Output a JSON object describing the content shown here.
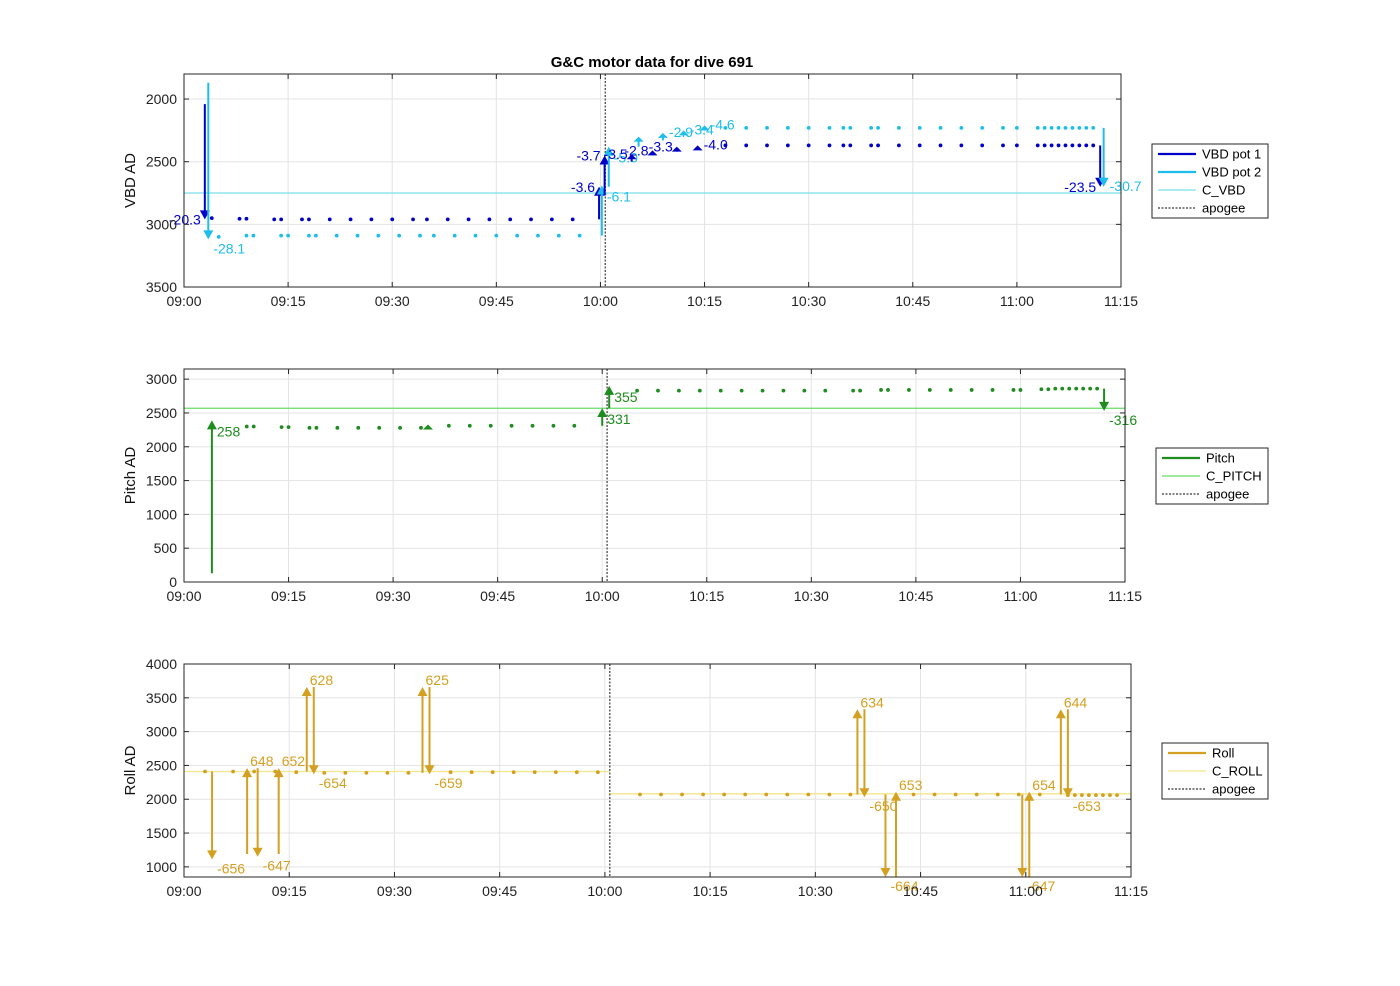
{
  "figure_title": "G&C motor data for dive 691",
  "colors": {
    "vbd1": "#0000c8",
    "vbd2": "#1ebeeb",
    "c_vbd": "#7adfea",
    "pitch": "#1e8c1e",
    "c_pitch": "#66dd66",
    "roll": "#d4a021",
    "c_roll": "#f5e68a",
    "apogee": "#555555",
    "grid": "#e3e3e3"
  },
  "chart_data": [
    {
      "type": "line",
      "name": "vbd",
      "ylabel": "VBD AD",
      "ylim": [
        3500,
        1800
      ],
      "yreversed": true,
      "yticks": [
        2000,
        2500,
        3000,
        3500
      ],
      "xlim": [
        "09:00",
        "11:15"
      ],
      "xticks": [
        "09:00",
        "09:15",
        "09:30",
        "09:45",
        "10:00",
        "10:15",
        "10:30",
        "10:45",
        "11:00",
        "11:15"
      ],
      "grid": true,
      "apogee": "10:00.7",
      "legend": [
        "VBD pot 1",
        "VBD pot 2",
        "C_VBD",
        "apogee"
      ],
      "reference_line": {
        "name": "C_VBD",
        "value": 2750
      },
      "series": [
        {
          "name": "VBD pot 1",
          "color_key": "vbd1",
          "x": [
            "09:04",
            "09:08",
            "09:09",
            "09:13",
            "09:14",
            "09:17",
            "09:18",
            "09:21",
            "09:24",
            "09:27",
            "09:30",
            "09:33",
            "09:35",
            "09:38",
            "09:41",
            "09:44",
            "09:47",
            "09:50",
            "09:53",
            "09:56",
            "10:18",
            "10:21",
            "10:24",
            "10:27",
            "10:30",
            "10:33",
            "10:35",
            "10:36",
            "10:39",
            "10:40",
            "10:43",
            "10:46",
            "10:49",
            "10:52",
            "10:55",
            "10:58",
            "11:00",
            "11:03",
            "11:04",
            "11:05",
            "11:06",
            "11:07",
            "11:08",
            "11:09",
            "11:10",
            "11:11"
          ],
          "y": [
            2950,
            2955,
            2955,
            2960,
            2960,
            2960,
            2960,
            2960,
            2960,
            2960,
            2960,
            2960,
            2960,
            2960,
            2960,
            2960,
            2960,
            2960,
            2960,
            2960,
            2370,
            2370,
            2370,
            2370,
            2370,
            2370,
            2370,
            2370,
            2370,
            2370,
            2370,
            2370,
            2370,
            2370,
            2370,
            2370,
            2370,
            2370,
            2370,
            2370,
            2370,
            2370,
            2370,
            2370,
            2370,
            2370
          ]
        },
        {
          "name": "VBD pot 2",
          "color_key": "vbd2",
          "x": [
            "09:05",
            "09:09",
            "09:10",
            "09:14",
            "09:15",
            "09:18",
            "09:19",
            "09:22",
            "09:25",
            "09:28",
            "09:31",
            "09:34",
            "09:36",
            "09:39",
            "09:42",
            "09:45",
            "09:48",
            "09:51",
            "09:54",
            "09:57",
            "10:18",
            "10:21",
            "10:24",
            "10:27",
            "10:30",
            "10:33",
            "10:35",
            "10:36",
            "10:39",
            "10:40",
            "10:43",
            "10:46",
            "10:49",
            "10:52",
            "10:55",
            "10:58",
            "11:00",
            "11:03",
            "11:04",
            "11:05",
            "11:06",
            "11:07",
            "11:08",
            "11:09",
            "11:10",
            "11:11"
          ],
          "y": [
            3100,
            3090,
            3090,
            3090,
            3090,
            3090,
            3090,
            3090,
            3090,
            3090,
            3090,
            3090,
            3090,
            3090,
            3090,
            3090,
            3090,
            3090,
            3090,
            3090,
            2230,
            2230,
            2230,
            2230,
            2230,
            2230,
            2230,
            2230,
            2230,
            2230,
            2230,
            2230,
            2230,
            2230,
            2230,
            2230,
            2230,
            2230,
            2230,
            2230,
            2230,
            2230,
            2230,
            2230,
            2230,
            2230
          ]
        }
      ],
      "moves": [
        {
          "series": "VBD pot 1",
          "x": "09:03",
          "y0": 2040,
          "y1": 2960,
          "label": "-20.3",
          "label_side": "left"
        },
        {
          "series": "VBD pot 2",
          "x": "09:03.5",
          "y0": 1870,
          "y1": 3120,
          "label": "-28.1",
          "label_side": "right-below"
        },
        {
          "series": "VBD pot 1",
          "x": "09:59.8",
          "y0": 2960,
          "y1": 2700,
          "label": "-3.6",
          "label_side": "left"
        },
        {
          "series": "VBD pot 2",
          "x": "10:00.2",
          "y0": 3090,
          "y1": 2690,
          "label": "-6.1",
          "label_side": "right-below"
        },
        {
          "series": "VBD pot 1",
          "x": "10:00.6",
          "y0": 2770,
          "y1": 2450,
          "label": "-3.7",
          "label_side": "left"
        },
        {
          "series": "VBD pot 2",
          "x": "10:01.2",
          "y0": 2700,
          "y1": 2380,
          "label": "-5.0",
          "label_side": "right-below"
        },
        {
          "series": "VBD pot 1",
          "x": "10:04.5",
          "y0": 2500,
          "y1": 2440,
          "label": "-3.5",
          "label_side": "left"
        },
        {
          "series": "VBD pot 2",
          "x": "10:05.5",
          "y0": 2380,
          "y1": 2300,
          "label": "",
          "label_side": "right"
        },
        {
          "series": "VBD pot 1",
          "x": "10:07.5",
          "y0": 2450,
          "y1": 2410,
          "label": "-2.8",
          "label_side": "left"
        },
        {
          "series": "VBD pot 2",
          "x": "10:09",
          "y0": 2330,
          "y1": 2270,
          "label": "-2.9",
          "label_side": "right"
        },
        {
          "series": "VBD pot 1",
          "x": "10:11",
          "y0": 2420,
          "y1": 2380,
          "label": "-3.3",
          "label_side": "left"
        },
        {
          "series": "VBD pot 2",
          "x": "10:12",
          "y0": 2290,
          "y1": 2250,
          "label": "-3.4",
          "label_side": "right"
        },
        {
          "series": "VBD pot 1",
          "x": "10:14",
          "y0": 2400,
          "y1": 2370,
          "label": "-4.0",
          "label_side": "right"
        },
        {
          "series": "VBD pot 2",
          "x": "10:15",
          "y0": 2250,
          "y1": 2210,
          "label": "-4.6",
          "label_side": "right"
        },
        {
          "series": "VBD pot 1",
          "x": "11:12",
          "y0": 2370,
          "y1": 2700,
          "label": "-23.5",
          "label_side": "left"
        },
        {
          "series": "VBD pot 2",
          "x": "11:12.5",
          "y0": 2230,
          "y1": 2700,
          "label": "-30.7",
          "label_side": "right"
        }
      ]
    },
    {
      "type": "line",
      "name": "pitch",
      "ylabel": "Pitch AD",
      "ylim": [
        0,
        3150
      ],
      "yreversed": false,
      "yticks": [
        0,
        500,
        1000,
        1500,
        2000,
        2500,
        3000
      ],
      "xlim": [
        "09:00",
        "11:15"
      ],
      "xticks": [
        "09:00",
        "09:15",
        "09:30",
        "09:45",
        "10:00",
        "10:15",
        "10:30",
        "10:45",
        "11:00",
        "11:15"
      ],
      "grid": true,
      "apogee": "10:00.7",
      "legend": [
        "Pitch",
        "C_PITCH",
        "apogee"
      ],
      "reference_line": {
        "name": "C_PITCH",
        "value": 2570
      },
      "series": [
        {
          "name": "Pitch",
          "color_key": "pitch",
          "x": [
            "09:09",
            "09:10",
            "09:14",
            "09:15",
            "09:18",
            "09:19",
            "09:22",
            "09:25",
            "09:28",
            "09:31",
            "09:34",
            "09:38",
            "09:41",
            "09:44",
            "09:47",
            "09:50",
            "09:53",
            "09:56",
            "10:05",
            "10:08",
            "10:11",
            "10:14",
            "10:17",
            "10:20",
            "10:23",
            "10:26",
            "10:29",
            "10:32",
            "10:36",
            "10:37",
            "10:40",
            "10:41",
            "10:44",
            "10:47",
            "10:50",
            "10:53",
            "10:56",
            "10:59",
            "11:00",
            "11:03",
            "11:04",
            "11:05",
            "11:06",
            "11:07",
            "11:08",
            "11:09",
            "11:10",
            "11:11"
          ],
          "y": [
            2300,
            2300,
            2290,
            2290,
            2280,
            2280,
            2280,
            2280,
            2280,
            2280,
            2280,
            2310,
            2310,
            2310,
            2310,
            2310,
            2310,
            2310,
            2830,
            2830,
            2830,
            2830,
            2830,
            2830,
            2830,
            2830,
            2830,
            2830,
            2830,
            2830,
            2840,
            2840,
            2840,
            2840,
            2840,
            2840,
            2840,
            2840,
            2840,
            2850,
            2850,
            2860,
            2860,
            2860,
            2860,
            2860,
            2860,
            2860
          ]
        }
      ],
      "moves": [
        {
          "series": "Pitch",
          "x": "09:04",
          "y0": 130,
          "y1": 2390,
          "label": "258",
          "label_side": "right-below"
        },
        {
          "series": "Pitch",
          "x": "09:35",
          "y0": 2270,
          "y1": 2330,
          "label": "",
          "label_side": "right"
        },
        {
          "series": "Pitch",
          "x": "10:00",
          "y0": 2310,
          "y1": 2570,
          "label": "331",
          "label_side": "right-below"
        },
        {
          "series": "Pitch",
          "x": "10:01",
          "y0": 2570,
          "y1": 2900,
          "label": "355",
          "label_side": "right-below"
        },
        {
          "series": "Pitch",
          "x": "11:12",
          "y0": 2860,
          "y1": 2530,
          "label": "-316",
          "label_side": "right-below"
        }
      ]
    },
    {
      "type": "line",
      "name": "roll",
      "ylabel": "Roll AD",
      "ylim": [
        850,
        4000
      ],
      "yreversed": false,
      "yticks": [
        1000,
        1500,
        2000,
        2500,
        3000,
        3500,
        4000
      ],
      "xlim": [
        "09:00",
        "11:15"
      ],
      "xticks": [
        "09:00",
        "09:15",
        "09:30",
        "09:45",
        "10:00",
        "10:15",
        "10:30",
        "10:45",
        "11:00",
        "11:15"
      ],
      "grid": true,
      "apogee": "10:00.7",
      "legend": [
        "Roll",
        "C_ROLL",
        "apogee"
      ],
      "reference_line": {
        "name": "C_ROLL",
        "value": 2080,
        "segments": [
          {
            "from": "09:00",
            "to": "10:00.7",
            "value": 2410
          },
          {
            "from": "10:00.7",
            "to": "11:15",
            "value": 2080
          }
        ]
      },
      "series": [
        {
          "name": "Roll",
          "color_key": "roll",
          "x": [
            "09:03",
            "09:07",
            "09:10",
            "09:13",
            "09:16",
            "09:20",
            "09:23",
            "09:26",
            "09:29",
            "09:32",
            "09:38",
            "09:41",
            "09:44",
            "09:47",
            "09:50",
            "09:53",
            "09:56",
            "09:59",
            "10:05",
            "10:08",
            "10:11",
            "10:14",
            "10:17",
            "10:20",
            "10:23",
            "10:26",
            "10:29",
            "10:32",
            "10:35",
            "10:44",
            "10:47",
            "10:50",
            "10:53",
            "10:56",
            "10:59",
            "11:02",
            "11:06",
            "11:07",
            "11:08",
            "11:09",
            "11:10",
            "11:11",
            "11:12",
            "11:13"
          ],
          "y": [
            2410,
            2410,
            2410,
            2410,
            2400,
            2390,
            2390,
            2390,
            2390,
            2390,
            2400,
            2400,
            2400,
            2400,
            2400,
            2400,
            2400,
            2400,
            2070,
            2070,
            2070,
            2070,
            2070,
            2070,
            2070,
            2070,
            2070,
            2070,
            2070,
            2070,
            2070,
            2070,
            2070,
            2070,
            2070,
            2070,
            2060,
            2060,
            2060,
            2060,
            2060,
            2060,
            2060,
            2060
          ]
        }
      ],
      "moves": [
        {
          "series": "Roll",
          "x": "09:04",
          "y0": 2410,
          "y1": 1110,
          "label": "-656",
          "label_side": "right-below"
        },
        {
          "series": "Roll",
          "x": "09:09",
          "y0": 1190,
          "y1": 2460,
          "label": "648",
          "label_side": "right-above"
        },
        {
          "series": "Roll",
          "x": "09:10.5",
          "y0": 2460,
          "y1": 1150,
          "label": "-647",
          "label_side": "right-below"
        },
        {
          "series": "Roll",
          "x": "09:13.5",
          "y0": 1190,
          "y1": 2460,
          "label": "652",
          "label_side": "right-above"
        },
        {
          "series": "Roll",
          "x": "09:17.5",
          "y0": 2410,
          "y1": 3660,
          "label": "628",
          "label_side": "right-above"
        },
        {
          "series": "Roll",
          "x": "09:18.5",
          "y0": 3660,
          "y1": 2370,
          "label": "-654",
          "label_side": "right-below"
        },
        {
          "series": "Roll",
          "x": "09:34",
          "y0": 2390,
          "y1": 3660,
          "label": "625",
          "label_side": "right-above"
        },
        {
          "series": "Roll",
          "x": "09:35",
          "y0": 3660,
          "y1": 2370,
          "label": "-659",
          "label_side": "right-below"
        },
        {
          "series": "Roll",
          "x": "10:36",
          "y0": 2070,
          "y1": 3330,
          "label": "634",
          "label_side": "right-above"
        },
        {
          "series": "Roll",
          "x": "10:37",
          "y0": 3330,
          "y1": 2030,
          "label": "-650",
          "label_side": "right-below"
        },
        {
          "series": "Roll",
          "x": "10:40",
          "y0": 2070,
          "y1": 850,
          "label": "-664",
          "label_side": "right-below"
        },
        {
          "series": "Roll",
          "x": "10:41.5",
          "y0": 850,
          "y1": 2110,
          "label": "653",
          "label_side": "right-above"
        },
        {
          "series": "Roll",
          "x": "10:59.5",
          "y0": 2070,
          "y1": 850,
          "label": "-647",
          "label_side": "right-below"
        },
        {
          "series": "Roll",
          "x": "11:00.5",
          "y0": 850,
          "y1": 2110,
          "label": "654",
          "label_side": "right-above"
        },
        {
          "series": "Roll",
          "x": "11:05",
          "y0": 2070,
          "y1": 3330,
          "label": "644",
          "label_side": "right-above"
        },
        {
          "series": "Roll",
          "x": "11:06",
          "y0": 3330,
          "y1": 2030,
          "label": "-653",
          "label_side": "right-below"
        }
      ]
    }
  ]
}
